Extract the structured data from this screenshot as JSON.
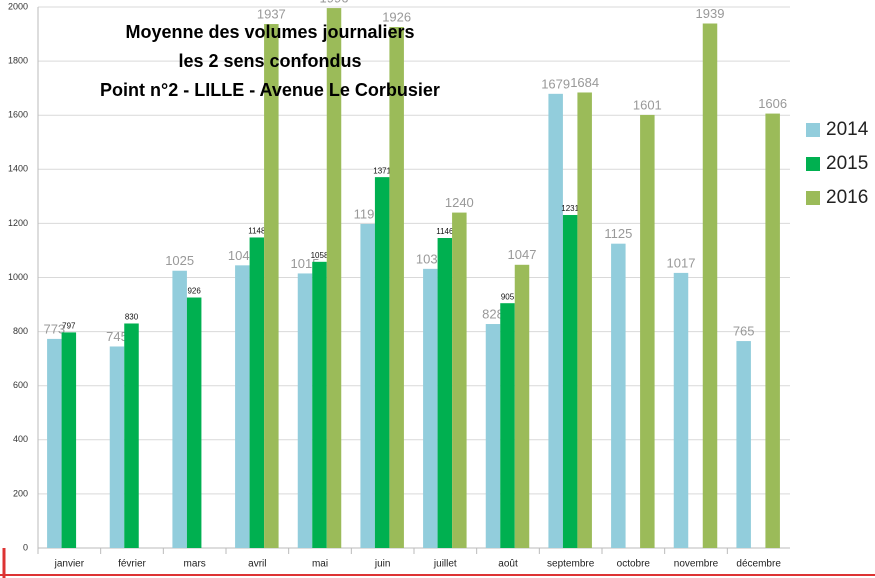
{
  "chart_data": {
    "type": "bar",
    "title": [
      "Moyenne des volumes journaliers",
      "les 2 sens confondus",
      "Point n°2 - LILLE - Avenue Le Corbusier"
    ],
    "categories": [
      "janvier",
      "février",
      "mars",
      "avril",
      "mai",
      "juin",
      "juillet",
      "août",
      "septembre",
      "octobre",
      "novembre",
      "décembre"
    ],
    "series": [
      {
        "name": "2014",
        "color": "#92cddc",
        "values": [
          773,
          745,
          1025,
          1045,
          1015,
          1198,
          1032,
          828,
          1679,
          1125,
          1017,
          765
        ]
      },
      {
        "name": "2015",
        "color": "#00b050",
        "values": [
          797,
          830,
          926,
          1148,
          1058,
          1371,
          1146,
          905,
          1231,
          null,
          null,
          null
        ]
      },
      {
        "name": "2016",
        "color": "#9bbb59",
        "values": [
          null,
          null,
          null,
          1937,
          1996,
          1926,
          1240,
          1047,
          1684,
          1601,
          1939,
          1606
        ]
      }
    ],
    "ylim": [
      0,
      2000
    ],
    "yticks": [
      0,
      200,
      400,
      600,
      800,
      1000,
      1200,
      1400,
      1600,
      1800,
      2000
    ],
    "grid": true,
    "legend": "right"
  }
}
